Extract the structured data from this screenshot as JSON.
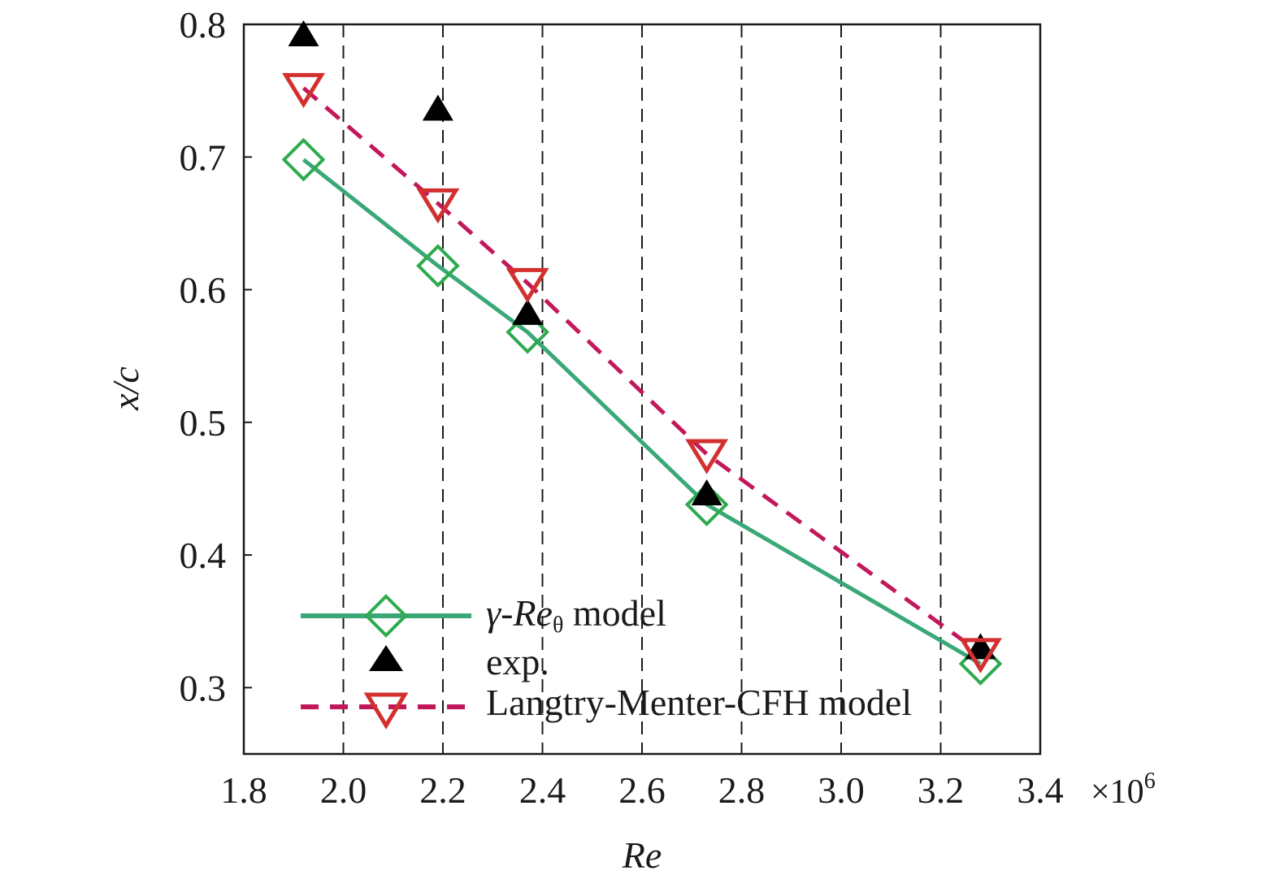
{
  "chart_data": {
    "type": "line",
    "xlabel": "Re",
    "ylabel": "x/c",
    "x_multiplier": {
      "base": "×10",
      "exponent": "6"
    },
    "xlim": [
      1.8,
      3.4
    ],
    "ylim": [
      0.25,
      0.8
    ],
    "xticks": [
      "1.8",
      "2.0",
      "2.2",
      "2.4",
      "2.6",
      "2.8",
      "3.0",
      "3.2",
      "3.4"
    ],
    "xtick_values": [
      1.8,
      2.0,
      2.2,
      2.4,
      2.6,
      2.8,
      3.0,
      3.2,
      3.4
    ],
    "yticks": [
      "0.3",
      "0.4",
      "0.5",
      "0.6",
      "0.7",
      "0.8"
    ],
    "ytick_values": [
      0.3,
      0.4,
      0.5,
      0.6,
      0.7,
      0.8
    ],
    "vertical_dashed_lines": [
      2.0,
      2.2,
      2.4,
      2.6,
      2.8,
      3.0,
      3.2
    ],
    "legend_position": "bottom-left",
    "series": [
      {
        "name_main": "γ-Re",
        "name_sub": "θ",
        "name_rest": " model",
        "marker": "diamond",
        "line": "solid",
        "color": "#3aa876",
        "marker_color": "#2eaa4f",
        "x": [
          1.92,
          2.19,
          2.37,
          2.73,
          3.28
        ],
        "y": [
          0.698,
          0.618,
          0.568,
          0.438,
          0.318
        ]
      },
      {
        "name": "exp.",
        "marker": "triangle-up",
        "line": "none",
        "color": "#000000",
        "x": [
          1.92,
          2.19,
          2.37,
          2.73,
          3.28
        ],
        "y": [
          0.792,
          0.736,
          0.582,
          0.446,
          0.33
        ]
      },
      {
        "name": "Langtry-Menter-CFH model",
        "marker": "triangle-down",
        "line": "dashed",
        "color": "#c2185b",
        "marker_color": "#d32f2f",
        "x": [
          1.92,
          2.19,
          2.37,
          2.73,
          3.28
        ],
        "y": [
          0.752,
          0.665,
          0.605,
          0.476,
          0.326
        ]
      }
    ]
  }
}
